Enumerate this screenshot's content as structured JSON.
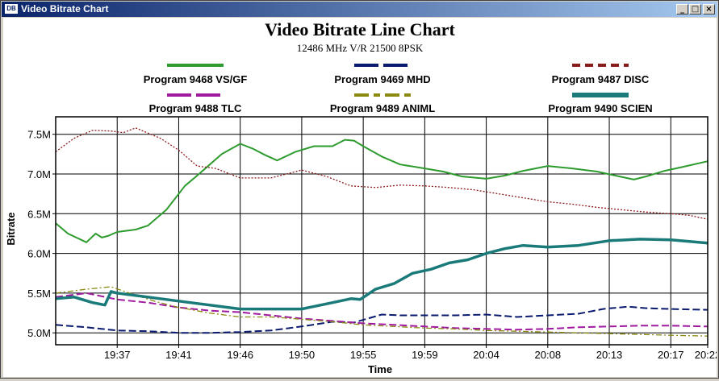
{
  "window": {
    "app_icon_text": "DB",
    "title": "Video Bitrate Chart",
    "minimize_glyph": "_",
    "maximize_glyph": "□",
    "close_glyph": "×"
  },
  "chart_data": {
    "type": "line",
    "title": "Video Bitrate Line Chart",
    "subtitle": "12486 MHz V/R 21500 8PSK",
    "xlabel": "Time",
    "ylabel": "Bitrate",
    "ylim": [
      4.85,
      7.72
    ],
    "yticks": [
      5.0,
      5.5,
      6.0,
      6.5,
      7.0,
      7.5
    ],
    "ytick_labels": [
      "5.0M",
      "5.5M",
      "6.0M",
      "6.5M",
      "7.0M",
      "7.5M"
    ],
    "xlim": [
      0,
      10.6
    ],
    "xticks": [
      1,
      2,
      3,
      4,
      5,
      6,
      7,
      8,
      9,
      10,
      10.6
    ],
    "xtick_labels": [
      "19:37",
      "19:41",
      "19:46",
      "19:50",
      "19:55",
      "19:59",
      "20:04",
      "20:08",
      "20:13",
      "20:17",
      "20:22"
    ],
    "grid": true,
    "legend_position": "top",
    "series": [
      {
        "name": "Program 9468 VS/GF",
        "color": "#2e9b2e",
        "style": "solid",
        "x": [
          0,
          0.2,
          0.5,
          0.65,
          0.75,
          0.85,
          1.0,
          1.3,
          1.5,
          1.8,
          2.1,
          2.3,
          2.7,
          3.0,
          3.2,
          3.4,
          3.6,
          3.9,
          4.2,
          4.5,
          4.7,
          4.85,
          5.0,
          5.3,
          5.6,
          6.0,
          6.3,
          6.6,
          7.0,
          7.3,
          7.6,
          8.0,
          8.4,
          8.8,
          9.1,
          9.4,
          9.6,
          9.9,
          10.2,
          10.6
        ],
        "y": [
          6.38,
          6.25,
          6.14,
          6.25,
          6.2,
          6.22,
          6.27,
          6.3,
          6.35,
          6.55,
          6.85,
          6.98,
          7.25,
          7.38,
          7.32,
          7.24,
          7.17,
          7.28,
          7.35,
          7.35,
          7.43,
          7.42,
          7.35,
          7.22,
          7.12,
          7.07,
          7.03,
          6.97,
          6.94,
          6.98,
          7.04,
          7.1,
          7.07,
          7.03,
          6.98,
          6.93,
          6.97,
          7.04,
          7.09,
          7.16
        ]
      },
      {
        "name": "Program 9469 MHD",
        "color": "#0a1a6e",
        "style": "dash",
        "x": [
          0,
          0.5,
          1.0,
          1.5,
          2.0,
          2.5,
          3.0,
          3.5,
          4.0,
          4.5,
          4.85,
          5.3,
          5.6,
          6.0,
          6.5,
          7.0,
          7.5,
          8.0,
          8.5,
          8.9,
          9.3,
          9.6,
          10.0,
          10.6
        ],
        "y": [
          5.1,
          5.07,
          5.03,
          5.02,
          5.0,
          5.0,
          5.01,
          5.03,
          5.08,
          5.14,
          5.13,
          5.23,
          5.22,
          5.22,
          5.22,
          5.23,
          5.2,
          5.22,
          5.24,
          5.3,
          5.33,
          5.31,
          5.3,
          5.29
        ]
      },
      {
        "name": "Program 9487 DISC",
        "color": "#8b1a1a",
        "style": "dot",
        "x": [
          0,
          0.3,
          0.6,
          0.9,
          1.1,
          1.3,
          1.7,
          2.0,
          2.3,
          2.6,
          3.0,
          3.5,
          4.0,
          4.4,
          4.8,
          5.2,
          5.6,
          6.0,
          6.4,
          6.8,
          7.2,
          7.6,
          8.0,
          8.4,
          8.8,
          9.2,
          9.6,
          10.0,
          10.3,
          10.6
        ],
        "y": [
          7.28,
          7.45,
          7.55,
          7.54,
          7.52,
          7.58,
          7.45,
          7.3,
          7.1,
          7.07,
          6.95,
          6.95,
          7.05,
          6.97,
          6.85,
          6.83,
          6.86,
          6.85,
          6.83,
          6.8,
          6.75,
          6.7,
          6.65,
          6.62,
          6.58,
          6.55,
          6.52,
          6.5,
          6.48,
          6.43
        ]
      },
      {
        "name": "Program 9488 TLC",
        "color": "#a01aa0",
        "style": "dash",
        "x": [
          0,
          0.5,
          1.0,
          1.5,
          2.0,
          2.5,
          3.0,
          3.5,
          4.0,
          4.5,
          5.0,
          5.5,
          6.0,
          6.5,
          7.0,
          7.5,
          8.0,
          8.5,
          9.0,
          9.5,
          10.0,
          10.6
        ],
        "y": [
          5.45,
          5.5,
          5.42,
          5.38,
          5.32,
          5.28,
          5.26,
          5.22,
          5.18,
          5.15,
          5.12,
          5.1,
          5.08,
          5.06,
          5.05,
          5.04,
          5.05,
          5.07,
          5.08,
          5.09,
          5.09,
          5.08
        ]
      },
      {
        "name": "Program 9489 ANIML",
        "color": "#8a8a10",
        "style": "dashdot",
        "x": [
          0,
          0.5,
          0.9,
          1.2,
          1.6,
          2.0,
          2.5,
          3.0,
          3.5,
          4.0,
          4.5,
          5.0,
          5.5,
          6.0,
          6.5,
          7.0,
          7.5,
          8.0,
          8.5,
          9.0,
          9.5,
          10.0,
          10.6
        ],
        "y": [
          5.5,
          5.55,
          5.58,
          5.5,
          5.4,
          5.32,
          5.25,
          5.2,
          5.2,
          5.17,
          5.14,
          5.1,
          5.08,
          5.06,
          5.05,
          5.03,
          5.02,
          5.01,
          5.0,
          4.99,
          4.98,
          4.97,
          4.96
        ]
      },
      {
        "name": "Program 9490 SCIEN",
        "color": "#1a7a7a",
        "style": "thick",
        "x": [
          0,
          0.3,
          0.6,
          0.8,
          0.9,
          1.0,
          1.5,
          2.0,
          2.5,
          3.0,
          3.5,
          4.0,
          4.5,
          4.8,
          4.95,
          5.2,
          5.5,
          5.8,
          6.1,
          6.4,
          6.7,
          7.0,
          7.3,
          7.6,
          8.0,
          8.5,
          9.0,
          9.5,
          10.0,
          10.6
        ],
        "y": [
          5.43,
          5.45,
          5.38,
          5.35,
          5.52,
          5.5,
          5.45,
          5.4,
          5.35,
          5.3,
          5.3,
          5.3,
          5.38,
          5.43,
          5.42,
          5.55,
          5.62,
          5.75,
          5.8,
          5.88,
          5.92,
          6.0,
          6.06,
          6.1,
          6.08,
          6.1,
          6.16,
          6.18,
          6.17,
          6.13
        ]
      }
    ]
  }
}
